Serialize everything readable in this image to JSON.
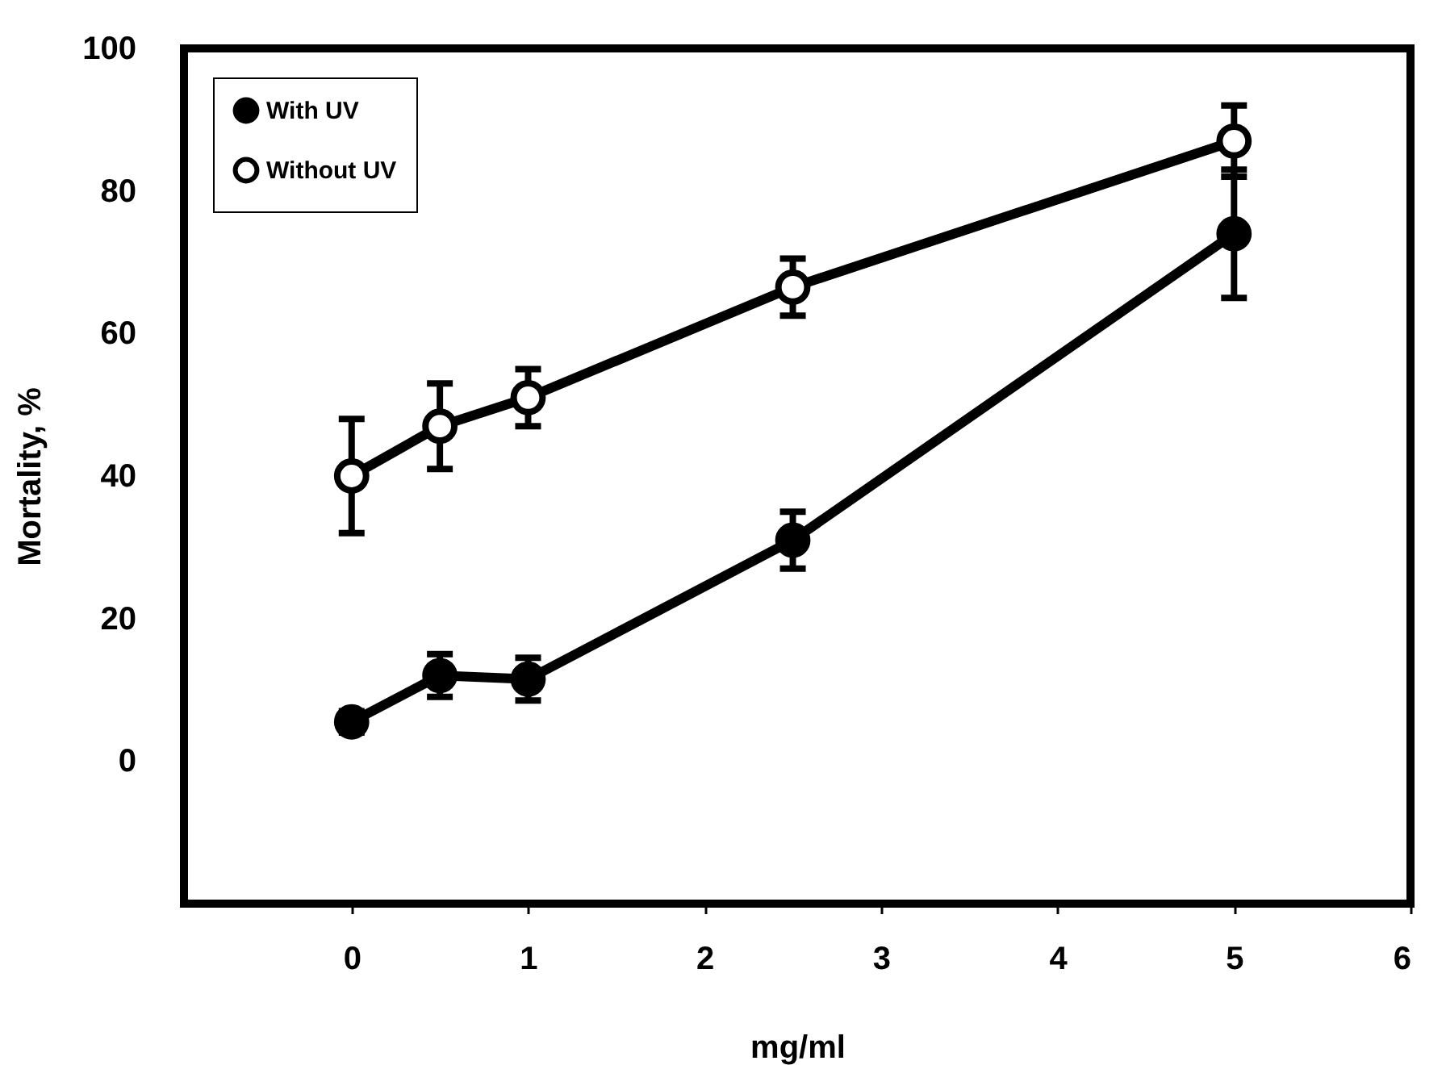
{
  "chart_data": {
    "type": "line",
    "xlabel": "mg/ml",
    "ylabel": "Mortality, %",
    "x": [
      0,
      0.5,
      1,
      2.5,
      5
    ],
    "series": [
      {
        "name": "With UV",
        "color": "#000000",
        "values": [
          5.5,
          12,
          11.5,
          31,
          74
        ],
        "errors": [
          1.5,
          3,
          3,
          4,
          9
        ]
      },
      {
        "name": "Without UV",
        "color": "#000000",
        "values": [
          40,
          47,
          51,
          66.5,
          87
        ],
        "errors": [
          8,
          6,
          4,
          4,
          5
        ]
      }
    ],
    "xlim": [
      -0.95,
      6
    ],
    "xticks": [
      0,
      1,
      2,
      3,
      4,
      5,
      6
    ],
    "ylim": [
      -20,
      100
    ],
    "yticks": [
      0,
      20,
      40,
      60,
      80,
      100
    ],
    "marker": "circle",
    "line_style": "solid",
    "grid": false,
    "legend": "top left"
  }
}
